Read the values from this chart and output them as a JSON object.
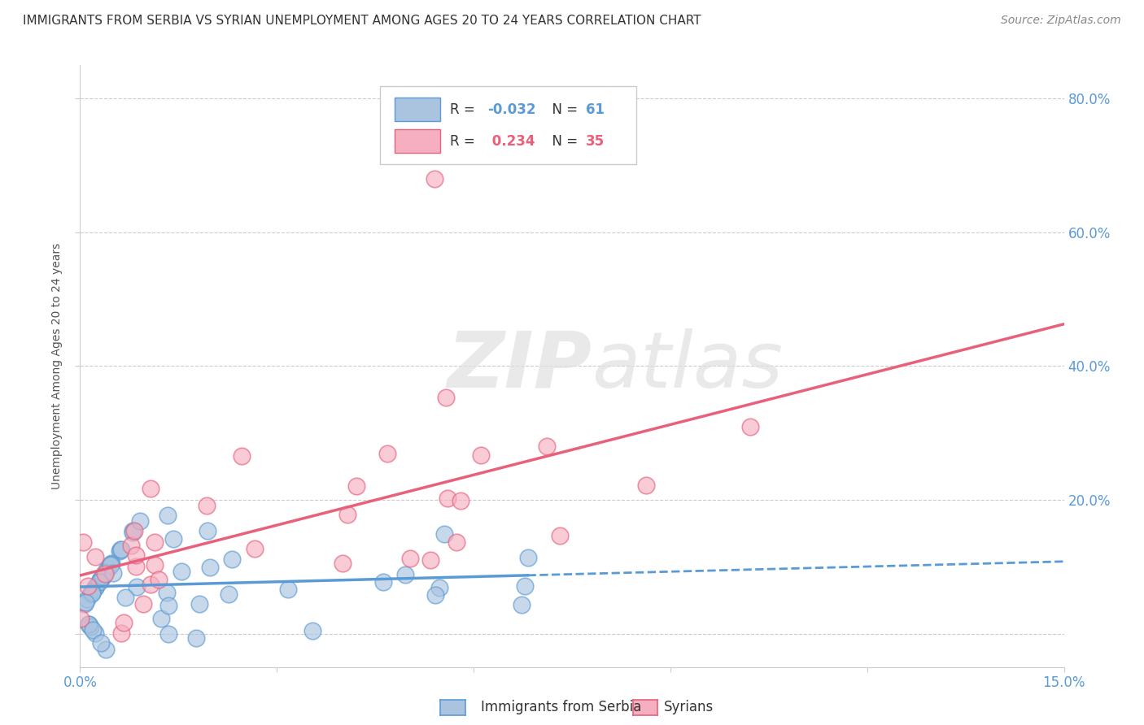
{
  "title": "IMMIGRANTS FROM SERBIA VS SYRIAN UNEMPLOYMENT AMONG AGES 20 TO 24 YEARS CORRELATION CHART",
  "source": "Source: ZipAtlas.com",
  "ylabel": "Unemployment Among Ages 20 to 24 years",
  "xlim": [
    0.0,
    0.15
  ],
  "ylim": [
    -0.05,
    0.85
  ],
  "ytick_positions": [
    0.0,
    0.2,
    0.4,
    0.6,
    0.8
  ],
  "ytick_labels": [
    "",
    "20.0%",
    "40.0%",
    "60.0%",
    "80.0%"
  ],
  "serbia_R": -0.032,
  "serbia_N": 61,
  "syria_R": 0.234,
  "syria_N": 35,
  "serbia_color": "#aac4e0",
  "syria_color": "#f5afc0",
  "serbia_line_color": "#5b9bd5",
  "syria_line_color": "#e8607a",
  "background_color": "#ffffff"
}
